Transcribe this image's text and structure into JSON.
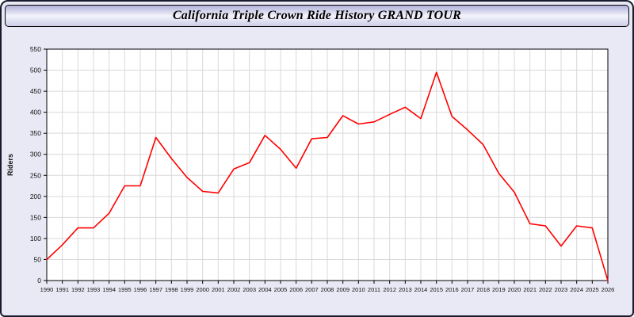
{
  "header": {
    "title": "California Triple Crown Ride History GRAND TOUR"
  },
  "colors": {
    "page_bg": "#e9e9f6",
    "plot_bg": "#ffffff",
    "grid": "#d9d9d9",
    "line": "#ff0000",
    "frame": "#000000"
  },
  "chart_data": {
    "type": "line",
    "title": "California Triple Crown Ride History GRAND TOUR",
    "xlabel": "",
    "ylabel": "Riders",
    "ylim": [
      0,
      550
    ],
    "ytick_step": 50,
    "grid": true,
    "legend": "none",
    "x": [
      1990,
      1991,
      1992,
      1993,
      1994,
      1995,
      1996,
      1997,
      1998,
      1999,
      2000,
      2001,
      2002,
      2003,
      2004,
      2005,
      2006,
      2007,
      2008,
      2009,
      2010,
      2011,
      2012,
      2013,
      2014,
      2015,
      2016,
      2017,
      2018,
      2019,
      2020,
      2021,
      2022,
      2023,
      2024,
      2025,
      2026
    ],
    "series": [
      {
        "name": "Riders",
        "color": "#ff0000",
        "values": [
          50,
          85,
          125,
          125,
          160,
          225,
          225,
          340,
          290,
          245,
          212,
          208,
          265,
          280,
          345,
          312,
          267,
          337,
          340,
          392,
          372,
          377,
          395,
          412,
          385,
          495,
          390,
          358,
          323,
          255,
          210,
          135,
          130,
          82,
          130,
          125,
          0
        ]
      }
    ]
  }
}
